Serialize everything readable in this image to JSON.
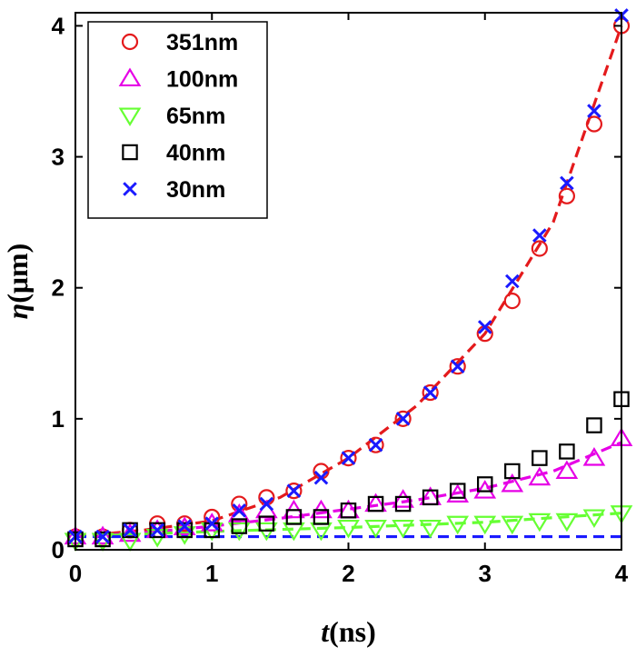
{
  "chart_data": {
    "type": "scatter",
    "xlabel": {
      "var": "t",
      "unit": "(ns)"
    },
    "ylabel": {
      "var": "η",
      "unit": "(μm)"
    },
    "xlim": [
      0,
      4
    ],
    "ylim": [
      0,
      4.1
    ],
    "xticks": [
      0,
      1,
      2,
      3,
      4
    ],
    "yticks": [
      0,
      1,
      2,
      3,
      4
    ],
    "grid": false,
    "legend_position": "top-left",
    "series": [
      {
        "name": "351nm",
        "marker": "circle",
        "color": "#e41a1c",
        "x": [
          0,
          0.2,
          0.4,
          0.6,
          0.8,
          1.0,
          1.2,
          1.4,
          1.6,
          1.8,
          2.0,
          2.2,
          2.4,
          2.6,
          2.8,
          3.0,
          3.2,
          3.4,
          3.6,
          3.8,
          4.0
        ],
        "y": [
          0.1,
          0.1,
          0.15,
          0.2,
          0.2,
          0.25,
          0.35,
          0.4,
          0.45,
          0.6,
          0.7,
          0.8,
          1.0,
          1.2,
          1.4,
          1.65,
          1.9,
          2.3,
          2.7,
          3.25,
          4.0
        ]
      },
      {
        "name": "100nm",
        "marker": "triangle-up",
        "color": "#e600e6",
        "x": [
          0,
          0.2,
          0.4,
          0.6,
          0.8,
          1.0,
          1.2,
          1.4,
          1.6,
          1.8,
          2.0,
          2.2,
          2.4,
          2.6,
          2.8,
          3.0,
          3.2,
          3.4,
          3.6,
          3.8,
          4.0
        ],
        "y": [
          0.1,
          0.1,
          0.12,
          0.15,
          0.17,
          0.2,
          0.27,
          0.3,
          0.3,
          0.3,
          0.3,
          0.35,
          0.38,
          0.4,
          0.42,
          0.45,
          0.5,
          0.55,
          0.6,
          0.7,
          0.85
        ]
      },
      {
        "name": "65nm",
        "marker": "triangle-down",
        "color": "#66ff33",
        "x": [
          0,
          0.2,
          0.4,
          0.6,
          0.8,
          1.0,
          1.2,
          1.4,
          1.6,
          1.8,
          2.0,
          2.2,
          2.4,
          2.6,
          2.8,
          3.0,
          3.2,
          3.4,
          3.6,
          3.8,
          4.0
        ],
        "y": [
          0.07,
          0.07,
          0.07,
          0.1,
          0.12,
          0.15,
          0.15,
          0.15,
          0.15,
          0.15,
          0.17,
          0.17,
          0.17,
          0.17,
          0.2,
          0.2,
          0.2,
          0.22,
          0.22,
          0.25,
          0.28
        ]
      },
      {
        "name": "40nm",
        "marker": "square",
        "color": "#000000",
        "x": [
          0,
          0.2,
          0.4,
          0.6,
          0.8,
          1.0,
          1.2,
          1.4,
          1.6,
          1.8,
          2.0,
          2.2,
          2.4,
          2.6,
          2.8,
          3.0,
          3.2,
          3.4,
          3.6,
          3.8,
          4.0
        ],
        "y": [
          0.08,
          0.08,
          0.15,
          0.15,
          0.15,
          0.15,
          0.18,
          0.2,
          0.25,
          0.25,
          0.3,
          0.35,
          0.35,
          0.4,
          0.45,
          0.5,
          0.6,
          0.7,
          0.75,
          0.95,
          1.15
        ]
      },
      {
        "name": "30nm",
        "marker": "x",
        "color": "#1a1aff",
        "x": [
          0,
          0.2,
          0.4,
          0.6,
          0.8,
          1.0,
          1.2,
          1.4,
          1.6,
          1.8,
          2.0,
          2.2,
          2.4,
          2.6,
          2.8,
          3.0,
          3.2,
          3.4,
          3.6,
          3.8,
          4.0
        ],
        "y": [
          0.1,
          0.1,
          0.15,
          0.15,
          0.18,
          0.2,
          0.3,
          0.35,
          0.45,
          0.55,
          0.7,
          0.8,
          1.0,
          1.2,
          1.4,
          1.7,
          2.05,
          2.4,
          2.8,
          3.35,
          4.08
        ]
      }
    ],
    "fit_lines": [
      {
        "color": "#e41a1c",
        "style": "dashed",
        "x": [
          0,
          0.5,
          1.0,
          1.5,
          2.0,
          2.5,
          3.0,
          3.5,
          4.0
        ],
        "y": [
          0.1,
          0.15,
          0.22,
          0.4,
          0.7,
          1.1,
          1.65,
          2.5,
          4.0
        ]
      },
      {
        "color": "#e600e6",
        "style": "dashed",
        "x": [
          0,
          0.5,
          1.0,
          1.5,
          2.0,
          2.5,
          3.0,
          3.5,
          4.0
        ],
        "y": [
          0.1,
          0.13,
          0.18,
          0.24,
          0.31,
          0.38,
          0.47,
          0.6,
          0.82
        ]
      },
      {
        "color": "#66ff33",
        "style": "dashed",
        "x": [
          0,
          1.0,
          2.0,
          3.0,
          4.0
        ],
        "y": [
          0.1,
          0.14,
          0.17,
          0.21,
          0.28
        ]
      },
      {
        "color": "#1a1aff",
        "style": "dashed",
        "x": [
          0,
          4.0
        ],
        "y": [
          0.1,
          0.1
        ]
      }
    ]
  }
}
